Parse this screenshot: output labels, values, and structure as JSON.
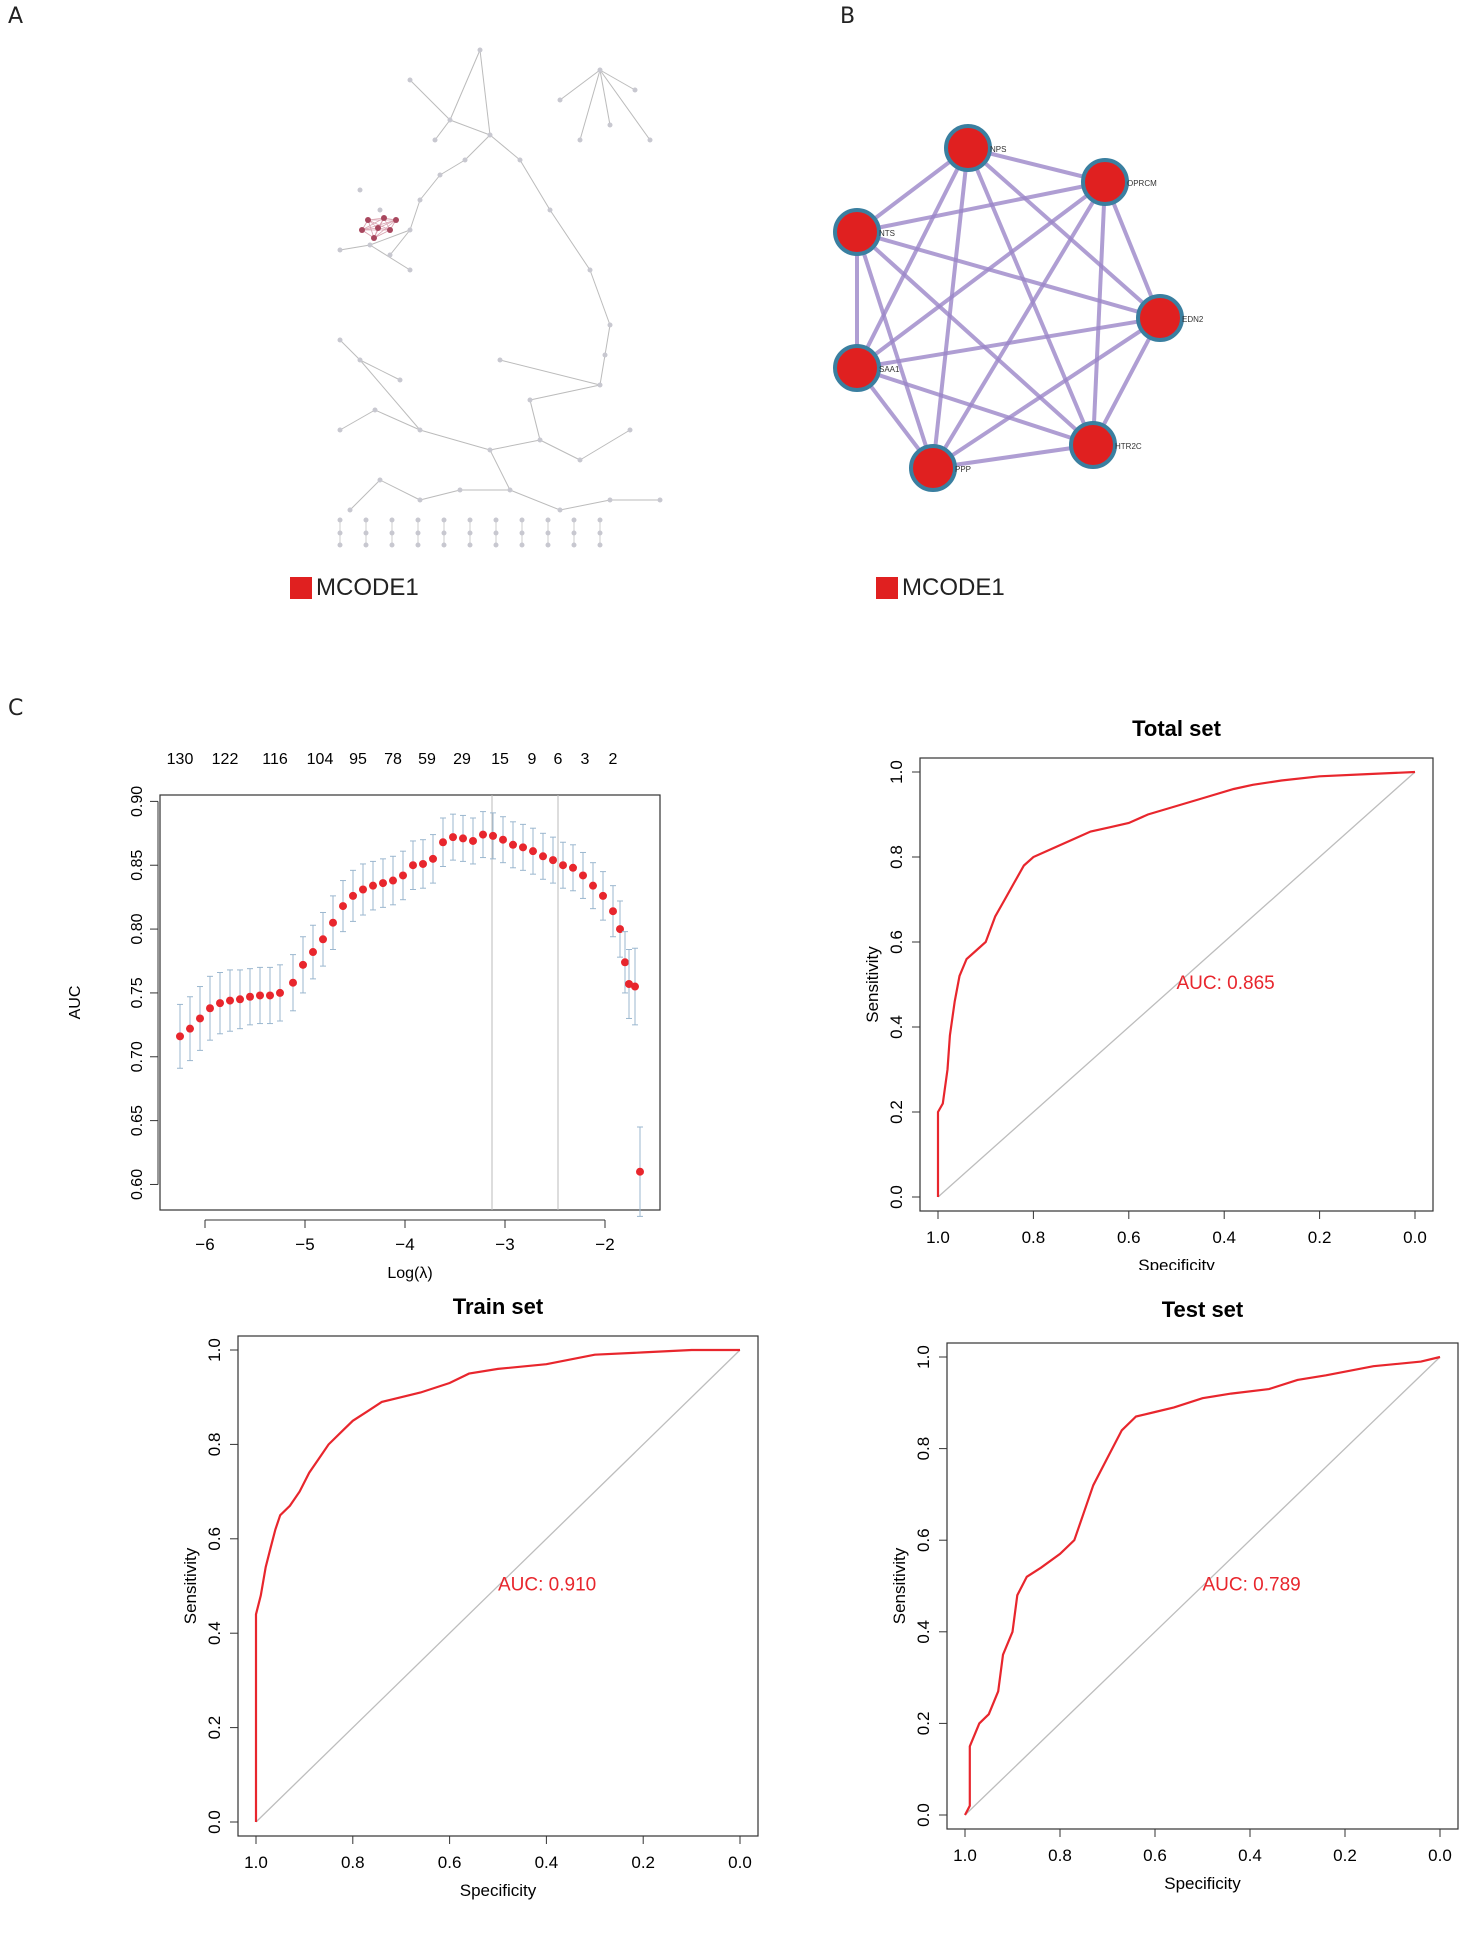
{
  "panels": {
    "a": "A",
    "b": "B",
    "c": "C"
  },
  "legend": {
    "label": "MCODE1",
    "color": "#e02020"
  },
  "network_b": {
    "nodes": [
      "NPS",
      "OPRCM",
      "EDN2",
      "HTR2C",
      "PPP",
      "SAA1",
      "NTS"
    ]
  },
  "colors": {
    "curve": "#e8262d",
    "node": "#e02020",
    "node_border": "#3a7fa0",
    "edge": "#9b86c8",
    "diag": "#bdbdbd"
  },
  "chart_data": [
    {
      "id": "cv",
      "type": "scatter",
      "title": "",
      "xlabel": "Log(λ)",
      "ylabel": "AUC",
      "xlim": [
        -6.45,
        -1.45
      ],
      "ylim": [
        0.58,
        0.905
      ],
      "xticks": [
        -6,
        -5,
        -4,
        -3,
        -2
      ],
      "yticks": [
        "0.60",
        "0.65",
        "0.70",
        "0.75",
        "0.80",
        "0.85",
        "0.90"
      ],
      "top_labels": [
        {
          "x": -6.25,
          "label": "130"
        },
        {
          "x": -5.8,
          "label": "122"
        },
        {
          "x": -5.3,
          "label": "116"
        },
        {
          "x": -4.85,
          "label": "104"
        },
        {
          "x": -4.47,
          "label": "95"
        },
        {
          "x": -4.12,
          "label": "78"
        },
        {
          "x": -3.78,
          "label": "59"
        },
        {
          "x": -3.43,
          "label": "29"
        },
        {
          "x": -3.05,
          "label": "15"
        },
        {
          "x": -2.73,
          "label": "9"
        },
        {
          "x": -2.47,
          "label": "6"
        },
        {
          "x": -2.2,
          "label": "3"
        },
        {
          "x": -1.92,
          "label": "2"
        }
      ],
      "vlines": [
        -3.13,
        -2.47
      ],
      "points": [
        [
          -6.25,
          0.716,
          0.025
        ],
        [
          -6.15,
          0.722,
          0.025
        ],
        [
          -6.05,
          0.73,
          0.025
        ],
        [
          -5.95,
          0.738,
          0.025
        ],
        [
          -5.85,
          0.742,
          0.024
        ],
        [
          -5.75,
          0.744,
          0.024
        ],
        [
          -5.65,
          0.745,
          0.023
        ],
        [
          -5.55,
          0.747,
          0.022
        ],
        [
          -5.45,
          0.748,
          0.022
        ],
        [
          -5.35,
          0.748,
          0.022
        ],
        [
          -5.25,
          0.75,
          0.022
        ],
        [
          -5.12,
          0.758,
          0.022
        ],
        [
          -5.02,
          0.772,
          0.022
        ],
        [
          -4.92,
          0.782,
          0.021
        ],
        [
          -4.82,
          0.792,
          0.021
        ],
        [
          -4.72,
          0.805,
          0.021
        ],
        [
          -4.62,
          0.818,
          0.02
        ],
        [
          -4.52,
          0.826,
          0.02
        ],
        [
          -4.42,
          0.831,
          0.02
        ],
        [
          -4.32,
          0.834,
          0.019
        ],
        [
          -4.22,
          0.836,
          0.019
        ],
        [
          -4.12,
          0.838,
          0.019
        ],
        [
          -4.02,
          0.842,
          0.019
        ],
        [
          -3.92,
          0.85,
          0.019
        ],
        [
          -3.82,
          0.851,
          0.019
        ],
        [
          -3.72,
          0.855,
          0.019
        ],
        [
          -3.62,
          0.868,
          0.019
        ],
        [
          -3.52,
          0.872,
          0.018
        ],
        [
          -3.42,
          0.871,
          0.018
        ],
        [
          -3.32,
          0.869,
          0.018
        ],
        [
          -3.22,
          0.874,
          0.018
        ],
        [
          -3.12,
          0.873,
          0.018
        ],
        [
          -3.02,
          0.87,
          0.018
        ],
        [
          -2.92,
          0.866,
          0.018
        ],
        [
          -2.82,
          0.864,
          0.018
        ],
        [
          -2.72,
          0.861,
          0.018
        ],
        [
          -2.62,
          0.857,
          0.018
        ],
        [
          -2.52,
          0.854,
          0.018
        ],
        [
          -2.42,
          0.85,
          0.018
        ],
        [
          -2.32,
          0.848,
          0.018
        ],
        [
          -2.22,
          0.842,
          0.018
        ],
        [
          -2.12,
          0.834,
          0.018
        ],
        [
          -2.02,
          0.826,
          0.019
        ],
        [
          -1.92,
          0.814,
          0.02
        ],
        [
          -1.85,
          0.8,
          0.022
        ],
        [
          -1.8,
          0.774,
          0.024
        ],
        [
          -1.76,
          0.757,
          0.027
        ],
        [
          -1.7,
          0.755,
          0.03
        ],
        [
          -1.65,
          0.61,
          0.035
        ]
      ]
    },
    {
      "id": "total",
      "type": "line",
      "title": "Total set",
      "xlabel": "Specificity",
      "ylabel": "Sensitivity",
      "xticks": [
        "1.0",
        "0.8",
        "0.6",
        "0.4",
        "0.2",
        "0.0"
      ],
      "yticks": [
        "0.0",
        "0.2",
        "0.4",
        "0.6",
        "0.8",
        "1.0"
      ],
      "auc_label": "AUC: 0.865",
      "auc_pos": [
        0.5,
        0.49
      ],
      "roc": [
        [
          1.0,
          0.0
        ],
        [
          1.0,
          0.2
        ],
        [
          0.99,
          0.22
        ],
        [
          0.98,
          0.3
        ],
        [
          0.975,
          0.38
        ],
        [
          0.965,
          0.46
        ],
        [
          0.955,
          0.52
        ],
        [
          0.94,
          0.56
        ],
        [
          0.92,
          0.58
        ],
        [
          0.9,
          0.6
        ],
        [
          0.88,
          0.66
        ],
        [
          0.86,
          0.7
        ],
        [
          0.84,
          0.74
        ],
        [
          0.82,
          0.78
        ],
        [
          0.8,
          0.8
        ],
        [
          0.76,
          0.82
        ],
        [
          0.72,
          0.84
        ],
        [
          0.68,
          0.86
        ],
        [
          0.64,
          0.87
        ],
        [
          0.6,
          0.88
        ],
        [
          0.56,
          0.9
        ],
        [
          0.5,
          0.92
        ],
        [
          0.44,
          0.94
        ],
        [
          0.38,
          0.96
        ],
        [
          0.34,
          0.97
        ],
        [
          0.28,
          0.98
        ],
        [
          0.2,
          0.99
        ],
        [
          0.1,
          0.995
        ],
        [
          0.0,
          1.0
        ]
      ]
    },
    {
      "id": "train",
      "type": "line",
      "title": "Train set",
      "xlabel": "Specificity",
      "ylabel": "Sensitivity",
      "xticks": [
        "1.0",
        "0.8",
        "0.6",
        "0.4",
        "0.2",
        "0.0"
      ],
      "yticks": [
        "0.0",
        "0.2",
        "0.4",
        "0.6",
        "0.8",
        "1.0"
      ],
      "auc_label": "AUC: 0.910",
      "auc_pos": [
        0.5,
        0.49
      ],
      "roc": [
        [
          1.0,
          0.0
        ],
        [
          1.0,
          0.44
        ],
        [
          0.99,
          0.48
        ],
        [
          0.98,
          0.54
        ],
        [
          0.97,
          0.58
        ],
        [
          0.96,
          0.62
        ],
        [
          0.95,
          0.65
        ],
        [
          0.93,
          0.67
        ],
        [
          0.91,
          0.7
        ],
        [
          0.89,
          0.74
        ],
        [
          0.87,
          0.77
        ],
        [
          0.85,
          0.8
        ],
        [
          0.82,
          0.83
        ],
        [
          0.8,
          0.85
        ],
        [
          0.77,
          0.87
        ],
        [
          0.74,
          0.89
        ],
        [
          0.7,
          0.9
        ],
        [
          0.66,
          0.91
        ],
        [
          0.6,
          0.93
        ],
        [
          0.56,
          0.95
        ],
        [
          0.5,
          0.96
        ],
        [
          0.4,
          0.97
        ],
        [
          0.3,
          0.99
        ],
        [
          0.2,
          0.995
        ],
        [
          0.1,
          1.0
        ],
        [
          0.0,
          1.0
        ]
      ]
    },
    {
      "id": "test",
      "type": "line",
      "title": "Test set",
      "xlabel": "Specificity",
      "ylabel": "Sensitivity",
      "xticks": [
        "1.0",
        "0.8",
        "0.6",
        "0.4",
        "0.2",
        "0.0"
      ],
      "yticks": [
        "0.0",
        "0.2",
        "0.4",
        "0.6",
        "0.8",
        "1.0"
      ],
      "auc_label": "AUC: 0.789",
      "auc_pos": [
        0.5,
        0.49
      ],
      "roc": [
        [
          1.0,
          0.0
        ],
        [
          0.99,
          0.02
        ],
        [
          0.99,
          0.15
        ],
        [
          0.97,
          0.2
        ],
        [
          0.95,
          0.22
        ],
        [
          0.93,
          0.27
        ],
        [
          0.92,
          0.35
        ],
        [
          0.9,
          0.4
        ],
        [
          0.89,
          0.48
        ],
        [
          0.87,
          0.52
        ],
        [
          0.84,
          0.54
        ],
        [
          0.8,
          0.57
        ],
        [
          0.77,
          0.6
        ],
        [
          0.75,
          0.66
        ],
        [
          0.73,
          0.72
        ],
        [
          0.7,
          0.78
        ],
        [
          0.67,
          0.84
        ],
        [
          0.64,
          0.87
        ],
        [
          0.6,
          0.88
        ],
        [
          0.56,
          0.89
        ],
        [
          0.5,
          0.91
        ],
        [
          0.44,
          0.92
        ],
        [
          0.36,
          0.93
        ],
        [
          0.3,
          0.95
        ],
        [
          0.24,
          0.96
        ],
        [
          0.14,
          0.98
        ],
        [
          0.04,
          0.99
        ],
        [
          0.0,
          1.0
        ]
      ]
    }
  ]
}
